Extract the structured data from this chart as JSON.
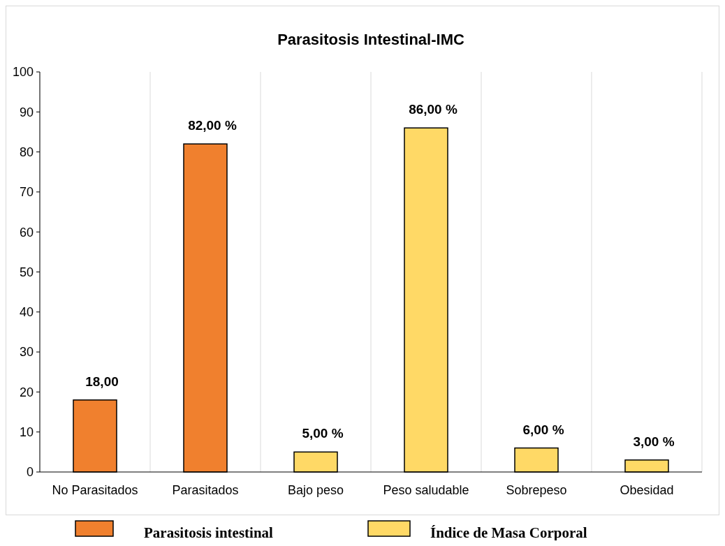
{
  "chart_data": {
    "type": "bar",
    "title": "Parasitosis Intestinal-IMC",
    "categories": [
      "No Parasitados",
      "Parasitados",
      "Bajo peso",
      "Peso saludable",
      "Sobrepeso",
      "Obesidad"
    ],
    "series": [
      {
        "name": "Parasitosis intestinal",
        "color": "#f0802e",
        "values": [
          18,
          82,
          null,
          null,
          null,
          null
        ],
        "value_labels": [
          "18,00",
          "82,00 %",
          null,
          null,
          null,
          null
        ]
      },
      {
        "name": "Índice de Masa Corporal",
        "color": "#ffd966",
        "values": [
          null,
          null,
          5,
          86,
          6,
          3
        ],
        "value_labels": [
          null,
          null,
          "5,00 %",
          "86,00 %",
          "6,00 %",
          "3,00 %"
        ]
      }
    ],
    "ylim": [
      0,
      100
    ],
    "yticks": [
      0,
      10,
      20,
      30,
      40,
      50,
      60,
      70,
      80,
      90,
      100
    ],
    "grid": "x",
    "legend": "bottom"
  }
}
